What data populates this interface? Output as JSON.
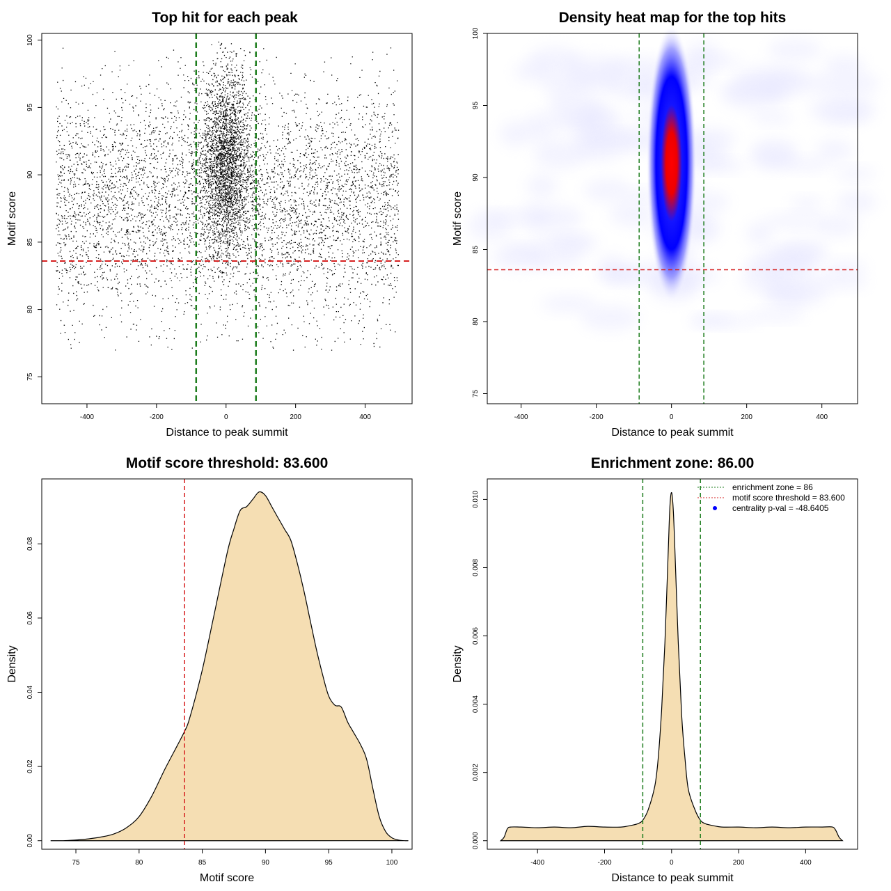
{
  "chart_data": [
    {
      "type": "scatter",
      "title": "Top hit for each peak",
      "xlabel": "Distance to peak summit",
      "ylabel": "Motif score",
      "xlim": [
        -530,
        535
      ],
      "ylim": [
        73,
        100.5
      ],
      "xticks": [
        -400,
        -200,
        0,
        200,
        400
      ],
      "yticks": [
        75,
        80,
        85,
        90,
        95,
        100
      ],
      "point_color": "#000000",
      "vlines": [
        -86,
        86
      ],
      "vline_color": "#1e7d1e",
      "hline": 83.6,
      "hline_color": "#d62020",
      "description_points": {
        "x_range": [
          -490,
          495
        ],
        "central_cluster_x_sd": 35,
        "central_cluster_y_range": [
          82,
          100
        ],
        "background_y_range": [
          77,
          99.5
        ]
      }
    },
    {
      "type": "heatmap",
      "title": "Density heat map for the top hits",
      "xlabel": "Distance to peak summit",
      "ylabel": "Motif score",
      "xlim": [
        -490,
        495
      ],
      "ylim": [
        74.3,
        100
      ],
      "xticks": [
        -400,
        -200,
        0,
        200,
        400
      ],
      "yticks": [
        75,
        80,
        85,
        90,
        95,
        100
      ],
      "colors": [
        "#ffffff",
        "#0000ff",
        "#ff0000"
      ],
      "hotspot": {
        "x": 0,
        "y": 91
      },
      "vlines": [
        -86,
        86
      ],
      "vline_color": "#1e7d1e",
      "hline": 83.6,
      "hline_color": "#d62020"
    },
    {
      "type": "area",
      "title": "Motif score threshold: 83.600",
      "xlabel": "Motif score",
      "ylabel": "Density",
      "xlim": [
        72.3,
        101.6
      ],
      "ylim": [
        -0.0023,
        0.0975
      ],
      "xticks": [
        75,
        80,
        85,
        90,
        95,
        100
      ],
      "yticks": [
        "0.00",
        "0.02",
        "0.04",
        "0.06",
        "0.08"
      ],
      "fill_color": "#f5deb3",
      "x": [
        73,
        74,
        75,
        76,
        77,
        78,
        79,
        80,
        81,
        82,
        83,
        83.6,
        84,
        85,
        86,
        87,
        87.5,
        88,
        88.5,
        89,
        89.5,
        90,
        90.5,
        91,
        91.5,
        92,
        92.5,
        93,
        93.5,
        94,
        94.5,
        95,
        95.5,
        96,
        96.5,
        97,
        97.5,
        98,
        98.5,
        99,
        99.5,
        100,
        100.5,
        101,
        101.3
      ],
      "y": [
        0.0,
        0.0,
        0.0002,
        0.0005,
        0.001,
        0.0018,
        0.0035,
        0.0065,
        0.012,
        0.019,
        0.0255,
        0.0295,
        0.033,
        0.046,
        0.062,
        0.078,
        0.084,
        0.089,
        0.09,
        0.092,
        0.094,
        0.093,
        0.09,
        0.087,
        0.084,
        0.081,
        0.075,
        0.068,
        0.06,
        0.052,
        0.045,
        0.039,
        0.0365,
        0.036,
        0.032,
        0.029,
        0.026,
        0.022,
        0.014,
        0.0065,
        0.0025,
        0.0008,
        0.0002,
        0.0,
        0.0
      ],
      "vline": 83.6,
      "vline_color": "#d62020"
    },
    {
      "type": "area",
      "title": "Enrichment zone: 86.00",
      "xlabel": "Distance to peak summit",
      "ylabel": "Density",
      "xlim": [
        -550,
        555
      ],
      "ylim": [
        -0.00025,
        0.0106
      ],
      "xticks": [
        -400,
        -200,
        0,
        200,
        400
      ],
      "yticks": [
        "0.000",
        "0.002",
        "0.004",
        "0.006",
        "0.008",
        "0.010"
      ],
      "fill_color": "#f5deb3",
      "x": [
        -510,
        -500,
        -490,
        -480,
        -450,
        -400,
        -350,
        -300,
        -250,
        -200,
        -150,
        -120,
        -100,
        -86,
        -70,
        -50,
        -40,
        -30,
        -20,
        -10,
        -5,
        0,
        5,
        10,
        20,
        30,
        40,
        50,
        70,
        86,
        100,
        120,
        150,
        200,
        250,
        300,
        350,
        400,
        450,
        480,
        490,
        500,
        510
      ],
      "y": [
        0.0,
        0.0001,
        0.00035,
        0.0004,
        0.0004,
        0.00038,
        0.0004,
        0.00038,
        0.00042,
        0.0004,
        0.0004,
        0.00045,
        0.0005,
        0.0006,
        0.0009,
        0.0016,
        0.0024,
        0.0038,
        0.0058,
        0.0085,
        0.0098,
        0.0102,
        0.0097,
        0.0085,
        0.0058,
        0.0037,
        0.0024,
        0.0015,
        0.0009,
        0.0006,
        0.0005,
        0.00045,
        0.0004,
        0.0004,
        0.00038,
        0.0004,
        0.00038,
        0.0004,
        0.0004,
        0.0004,
        0.0003,
        0.0001,
        0.0
      ],
      "vlines": [
        -86,
        86
      ],
      "vline_color": "#1e7d1e",
      "legend": [
        {
          "label": "enrichment zone = 86",
          "color": "#1e7d1e",
          "style": "dotted"
        },
        {
          "label": "motif score threshold = 83.600",
          "color": "#d62020",
          "style": "dotted"
        },
        {
          "label": "centrality p-val = -48.6405",
          "color": "#0000ff",
          "style": "point"
        }
      ],
      "legend_position": "top-right"
    }
  ]
}
